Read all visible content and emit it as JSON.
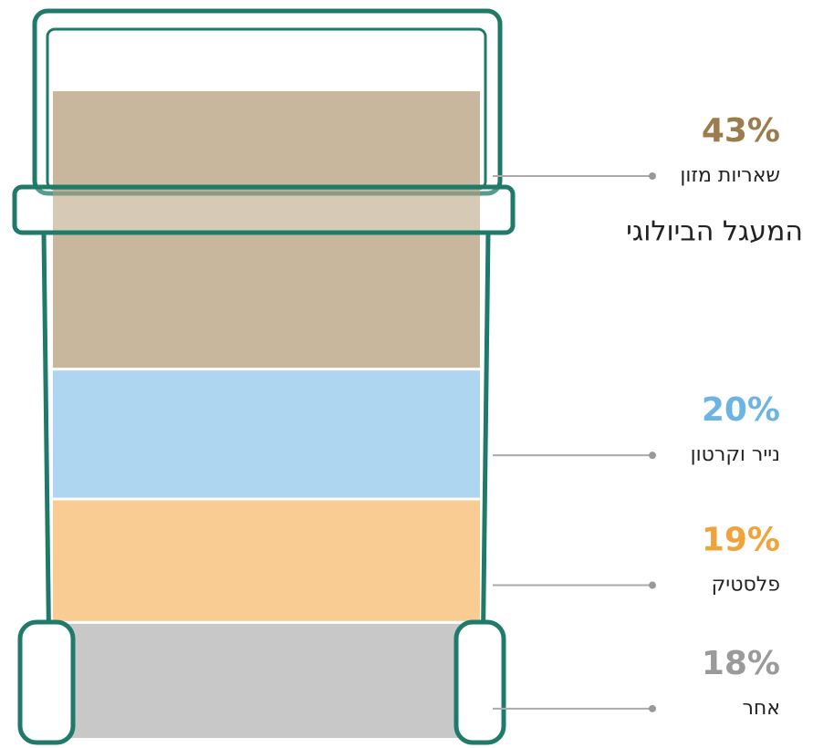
{
  "chart_data": {
    "type": "stacked-bin",
    "categories": [
      "שאריות מזון",
      "נייר וקרטון",
      "פלסטיק",
      "אחר"
    ],
    "values": [
      43,
      20,
      19,
      18
    ],
    "value_labels": [
      "43%",
      "20%",
      "19%",
      "18%"
    ],
    "colors": [
      "#9c7b4c",
      "#6cb4e4",
      "#f2a23a",
      "#9a9a9a"
    ],
    "annotation": "המעגל הביולוגי"
  }
}
